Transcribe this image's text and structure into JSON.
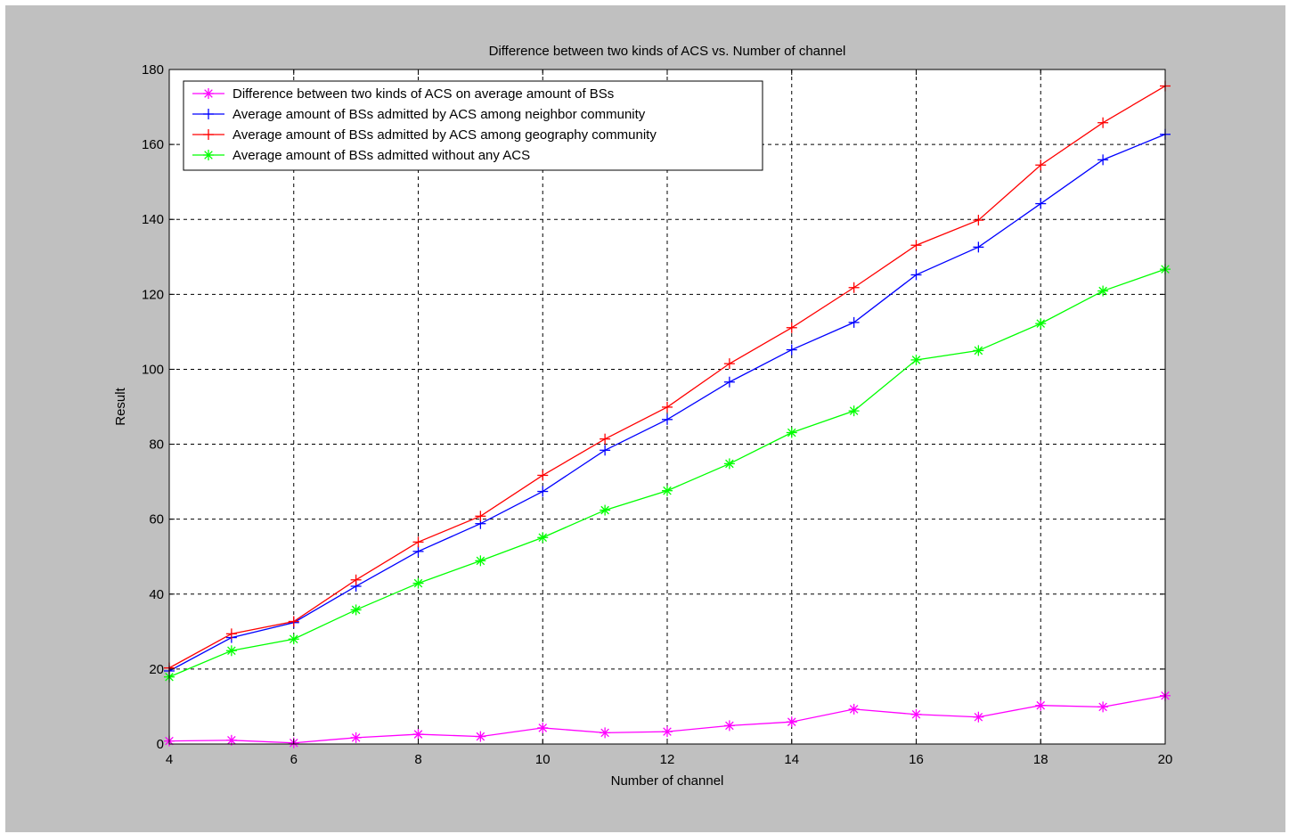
{
  "chart_data": {
    "type": "line",
    "title": "Difference between two kinds of ACS vs. Number of channel",
    "xlabel": "Number of channel",
    "ylabel": "Result",
    "xlim": [
      4,
      20
    ],
    "ylim": [
      0,
      180
    ],
    "xticks": [
      4,
      6,
      8,
      10,
      12,
      14,
      16,
      18,
      20
    ],
    "yticks": [
      0,
      20,
      40,
      60,
      80,
      100,
      120,
      140,
      160,
      180
    ],
    "grid": true,
    "legend_position": "top-left",
    "x": [
      4,
      5,
      6,
      7,
      8,
      9,
      10,
      11,
      12,
      13,
      14,
      15,
      16,
      17,
      18,
      19,
      20
    ],
    "series": [
      {
        "name": "Difference between two kinds of ACS on average amount of BSs",
        "color": "#ff00ff",
        "marker": "asterisk",
        "values": [
          0.8,
          1.0,
          0.3,
          1.7,
          2.6,
          2.0,
          4.3,
          3.0,
          3.3,
          4.9,
          5.9,
          9.3,
          7.9,
          7.2,
          10.3,
          9.9,
          12.9
        ]
      },
      {
        "name": "Average amount of BSs admitted by ACS among neighbor community",
        "color": "#0000ff",
        "marker": "plus",
        "values": [
          19.5,
          28.4,
          32.4,
          42.1,
          51.4,
          58.8,
          67.4,
          78.4,
          86.6,
          96.6,
          105.2,
          112.5,
          125.2,
          132.6,
          144.2,
          155.9,
          162.7
        ]
      },
      {
        "name": "Average amount of BSs admitted by ACS among geography community",
        "color": "#ff0000",
        "marker": "plus",
        "values": [
          20.3,
          29.4,
          32.7,
          43.8,
          53.9,
          60.8,
          71.7,
          81.4,
          89.9,
          101.5,
          111.1,
          121.8,
          133.1,
          139.8,
          154.5,
          165.8,
          175.6
        ]
      },
      {
        "name": "Average amount of BSs admitted without any ACS",
        "color": "#00ff00",
        "marker": "asterisk",
        "values": [
          17.9,
          24.9,
          28.0,
          35.8,
          42.9,
          48.9,
          55.1,
          62.4,
          67.6,
          74.8,
          83.1,
          88.9,
          102.5,
          105.0,
          112.2,
          120.9,
          126.7
        ]
      }
    ]
  }
}
